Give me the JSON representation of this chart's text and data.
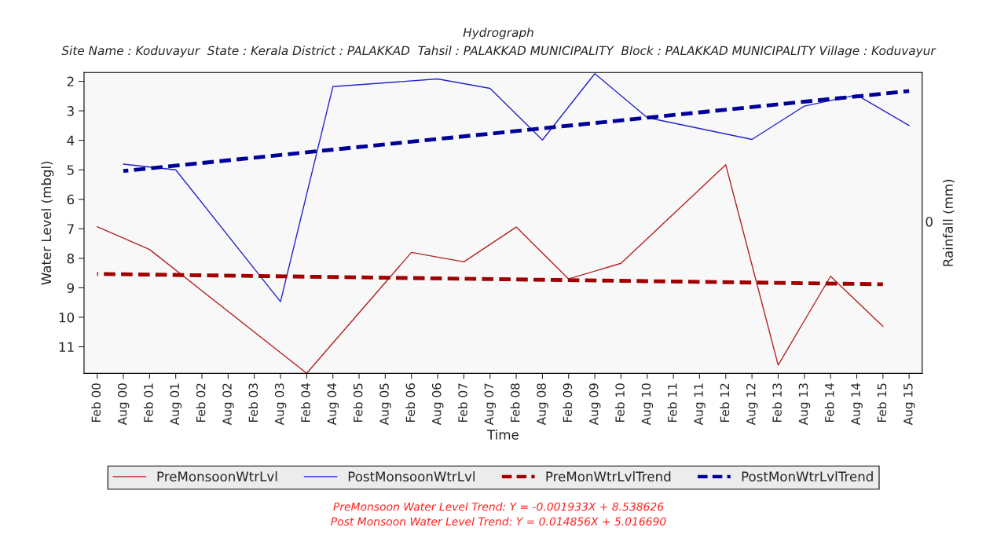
{
  "chart_data": {
    "type": "line",
    "title": "Hydrograph",
    "subtitle": "Site Name : Koduvayur  State : Kerala District : PALAKKAD  Tahsil : PALAKKAD MUNICIPALITY  Block : PALAKKAD MUNICIPALITY Village : Koduvayur",
    "xlabel": "Time",
    "ylabel": "Water Level (mbgl)",
    "y2label": "Rainfall (mm)",
    "categories": [
      "Feb 00",
      "Aug 00",
      "Feb 01",
      "Aug 01",
      "Feb 02",
      "Aug 02",
      "Feb 03",
      "Aug 03",
      "Feb 04",
      "Aug 04",
      "Feb 05",
      "Aug 05",
      "Feb 06",
      "Aug 06",
      "Feb 07",
      "Aug 07",
      "Feb 08",
      "Aug 08",
      "Feb 09",
      "Aug 09",
      "Feb 10",
      "Aug 10",
      "Feb 11",
      "Aug 11",
      "Feb 12",
      "Aug 12",
      "Feb 13",
      "Aug 13",
      "Feb 14",
      "Aug 14",
      "Feb 15",
      "Aug 15"
    ],
    "series": [
      {
        "name": "PreMonsoonWtrLvl",
        "color": "#b22222",
        "line_style": "solid",
        "values": [
          6.93,
          null,
          7.7,
          null,
          null,
          null,
          null,
          null,
          11.9,
          null,
          null,
          null,
          7.8,
          null,
          8.12,
          null,
          6.94,
          null,
          8.7,
          null,
          8.17,
          null,
          null,
          null,
          4.83,
          null,
          11.62,
          null,
          8.61,
          null,
          10.31,
          null
        ]
      },
      {
        "name": "PostMonsoonWtrLvl",
        "color": "#2424c8",
        "line_style": "solid",
        "values": [
          null,
          4.81,
          null,
          5.0,
          null,
          null,
          null,
          9.47,
          null,
          2.18,
          null,
          null,
          null,
          1.92,
          null,
          2.24,
          null,
          3.99,
          null,
          1.74,
          null,
          3.23,
          null,
          null,
          null,
          3.97,
          null,
          2.84,
          null,
          2.46,
          null,
          3.5
        ]
      },
      {
        "name": "PreMonWtrLvlTrend",
        "color": "#a00000",
        "line_style": "dashed",
        "values": [
          8.53,
          null,
          null,
          null,
          null,
          null,
          null,
          null,
          null,
          null,
          null,
          null,
          null,
          null,
          null,
          null,
          null,
          null,
          null,
          null,
          null,
          null,
          null,
          null,
          null,
          null,
          null,
          null,
          null,
          null,
          8.88,
          null
        ]
      },
      {
        "name": "PostMonWtrLvlTrend",
        "color": "#000099",
        "line_style": "dashed",
        "values": [
          null,
          5.04,
          null,
          null,
          null,
          null,
          null,
          null,
          null,
          null,
          null,
          null,
          null,
          null,
          null,
          null,
          null,
          null,
          null,
          null,
          null,
          null,
          null,
          null,
          null,
          null,
          null,
          null,
          null,
          null,
          null,
          2.33
        ]
      }
    ],
    "ylim": [
      11.9,
      1.7
    ],
    "yticks": [
      2,
      3,
      4,
      5,
      6,
      7,
      8,
      9,
      10,
      11
    ],
    "grid": false,
    "legend": "bottom",
    "marker": "none",
    "annotations": [
      "0",
      "PreMonsoon Water Level Trend: Y = -0.001933X + 8.538626",
      "Post Monsoon Water Level Trend: Y = 0.014856X + 5.016690"
    ]
  }
}
